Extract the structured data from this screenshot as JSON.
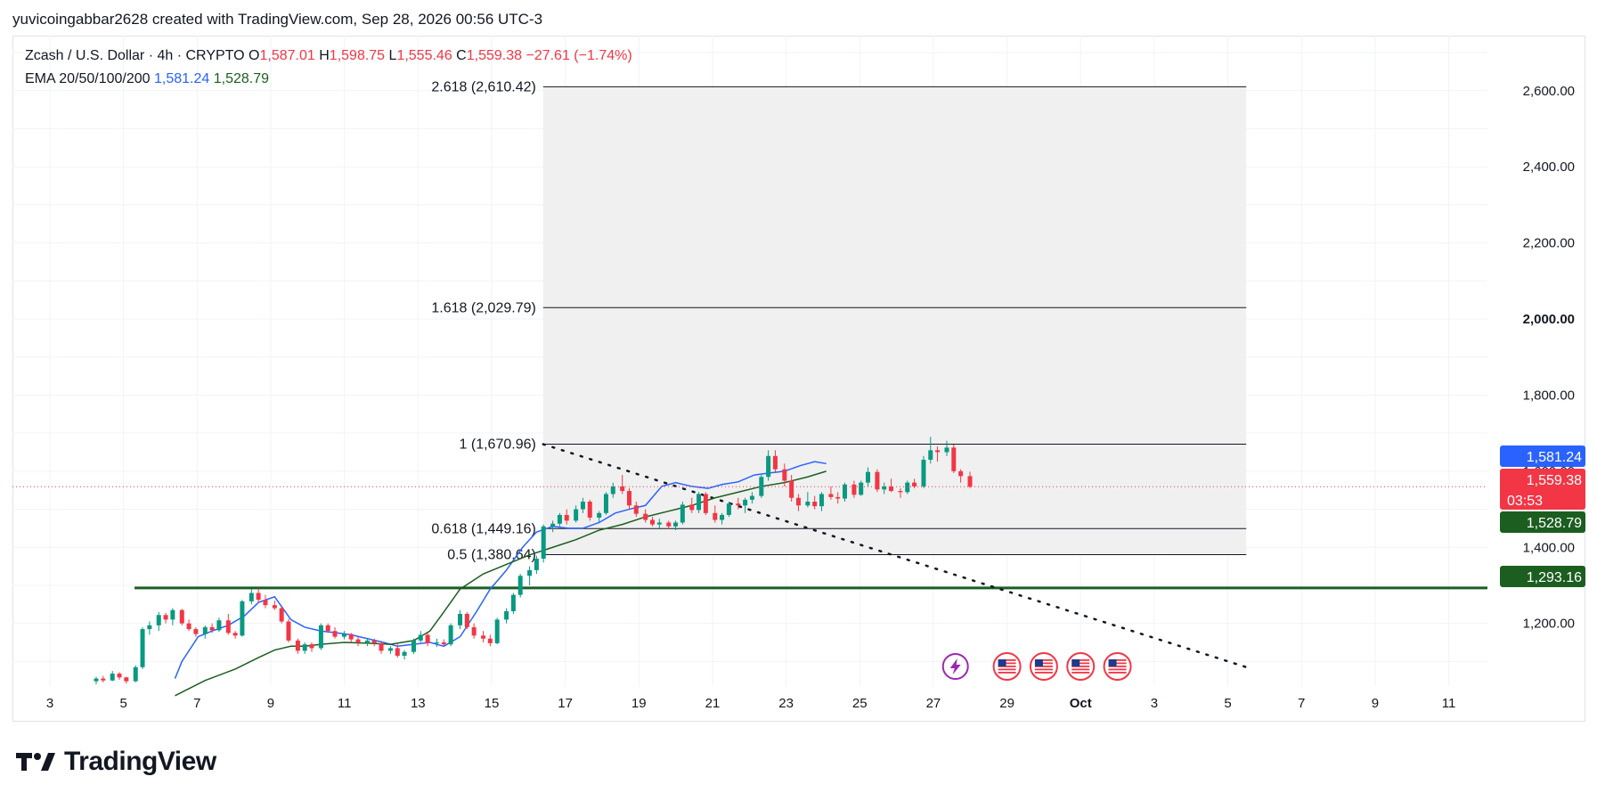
{
  "header": {
    "text": "yuvicoingabbar2628 created with TradingView.com, Sep 28, 2026 00:56 UTC-3"
  },
  "legend": {
    "symbol": "Zcash / U.S. Dollar · 4h · CRYPTO",
    "o_label": "O",
    "o_value": "1,587.01",
    "h_label": "H",
    "h_value": "1,598.75",
    "l_label": "L",
    "l_value": "1,555.46",
    "c_label": "C",
    "c_value": "1,559.38",
    "change": "−27.61 (−1.74%)",
    "ema_label": "EMA 20/50/100/200",
    "ema1": "1,581.24",
    "ema2": "1,528.79"
  },
  "logo": {
    "text": "TradingView"
  },
  "colors": {
    "up": "#089981",
    "down": "#f23645",
    "ema_fast": "#2962ff",
    "ema_slow": "#1b5e20",
    "support": "#1b5e20",
    "fib_zone": "#f0f0f0"
  },
  "chart_data": {
    "type": "candlestick",
    "x_ticks": [
      {
        "label": "3",
        "day": 3
      },
      {
        "label": "5",
        "day": 5
      },
      {
        "label": "7",
        "day": 7
      },
      {
        "label": "9",
        "day": 9
      },
      {
        "label": "11",
        "day": 11
      },
      {
        "label": "13",
        "day": 13
      },
      {
        "label": "15",
        "day": 15
      },
      {
        "label": "17",
        "day": 17
      },
      {
        "label": "19",
        "day": 19
      },
      {
        "label": "21",
        "day": 21
      },
      {
        "label": "23",
        "day": 23
      },
      {
        "label": "25",
        "day": 25
      },
      {
        "label": "27",
        "day": 27
      },
      {
        "label": "29",
        "day": 29
      },
      {
        "label": "Oct",
        "day": 31
      },
      {
        "label": "3",
        "day": 33
      },
      {
        "label": "5",
        "day": 35
      },
      {
        "label": "7",
        "day": 37
      },
      {
        "label": "9",
        "day": 39
      },
      {
        "label": "11",
        "day": 41
      }
    ],
    "y_ticks": [
      "1,200.00",
      "1,400.00",
      "1,600.00",
      "1,800.00",
      "2,000.00",
      "2,200.00",
      "2,400.00",
      "2,600.00"
    ],
    "y_range": [
      1040,
      2740
    ],
    "price_tags": [
      {
        "label": "1,581.24",
        "value": 1581.24,
        "color": "#2962ff"
      },
      {
        "label": "1,559.38",
        "value": 1559.38,
        "color": "#f23645",
        "sub": "03:53"
      },
      {
        "label": "1,528.79",
        "value": 1528.79,
        "color": "#1b5e20"
      },
      {
        "label": "1,293.16",
        "value": 1293.16,
        "color": "#1b5e20"
      }
    ],
    "fib_levels": [
      {
        "label": "2.618 (2,610.42)",
        "value": 2610.42
      },
      {
        "label": "1.618 (2,029.79)",
        "value": 2029.79
      },
      {
        "label": "1 (1,670.96)",
        "value": 1670.96
      },
      {
        "label": "0.618 (1,449.16)",
        "value": 1449.16
      },
      {
        "label": "0.5 (1,380.64)",
        "value": 1380.64
      }
    ],
    "fib_zone": {
      "day_start": 16.4,
      "day_end": 35.5
    },
    "support_line": {
      "value": 1293.16,
      "day_start": 5.3
    },
    "trend_line": {
      "day_start": 16.4,
      "value_start": 1670.96,
      "day_end": 35.5,
      "value_end": 1085
    },
    "ema_fast": [
      [
        7.7,
        1055
      ],
      [
        8,
        1100
      ],
      [
        8.7,
        1165
      ],
      [
        9.3,
        1180
      ],
      [
        10,
        1195
      ],
      [
        10.7,
        1220
      ],
      [
        11.3,
        1255
      ],
      [
        12,
        1270
      ],
      [
        12.7,
        1210
      ],
      [
        13.3,
        1190
      ],
      [
        14,
        1180
      ],
      [
        14.7,
        1175
      ],
      [
        15.3,
        1170
      ],
      [
        16,
        1160
      ],
      [
        16.7,
        1150
      ],
      [
        17.3,
        1140
      ],
      [
        18,
        1145
      ],
      [
        18.7,
        1150
      ],
      [
        19.3,
        1140
      ],
      [
        20,
        1165
      ],
      [
        20.7,
        1230
      ],
      [
        21.3,
        1290
      ],
      [
        22,
        1340
      ],
      [
        22.7,
        1400
      ],
      [
        23.3,
        1440
      ],
      [
        24,
        1455
      ],
      [
        24.7,
        1450
      ],
      [
        25.3,
        1450
      ],
      [
        26,
        1465
      ],
      [
        26.7,
        1490
      ],
      [
        27.3,
        1500
      ],
      [
        28,
        1510
      ],
      [
        28.7,
        1560
      ],
      [
        29.3,
        1570
      ],
      [
        30,
        1560
      ],
      [
        30.7,
        1555
      ],
      [
        31.3,
        1565
      ],
      [
        32,
        1572
      ],
      [
        32.7,
        1590
      ],
      [
        33.3,
        1595
      ],
      [
        34,
        1600
      ],
      [
        34.7,
        1615
      ],
      [
        35.3,
        1625
      ],
      [
        35.8,
        1620
      ]
    ],
    "ema_slow": [
      [
        7.7,
        1010
      ],
      [
        9,
        1050
      ],
      [
        10.3,
        1080
      ],
      [
        11.3,
        1110
      ],
      [
        12,
        1130
      ],
      [
        12.7,
        1140
      ],
      [
        13.3,
        1140
      ],
      [
        14,
        1145
      ],
      [
        15,
        1150
      ],
      [
        16,
        1148
      ],
      [
        17,
        1145
      ],
      [
        18,
        1155
      ],
      [
        18.7,
        1180
      ],
      [
        19.3,
        1230
      ],
      [
        20,
        1290
      ],
      [
        21,
        1330
      ],
      [
        22,
        1355
      ],
      [
        23,
        1380
      ],
      [
        24,
        1400
      ],
      [
        25,
        1420
      ],
      [
        26,
        1445
      ],
      [
        27,
        1460
      ],
      [
        28,
        1480
      ],
      [
        29,
        1495
      ],
      [
        30,
        1510
      ],
      [
        31,
        1530
      ],
      [
        32,
        1545
      ],
      [
        33,
        1560
      ],
      [
        34,
        1570
      ],
      [
        35,
        1585
      ],
      [
        35.8,
        1600
      ]
    ],
    "candles_note": "4h OHLC bars Sep 4 to Sep 27, 2026",
    "candles": [
      [
        4.3,
        1048,
        1060,
        1040,
        1055
      ],
      [
        4.6,
        1055,
        1062,
        1045,
        1050
      ],
      [
        5,
        1050,
        1075,
        1048,
        1068
      ],
      [
        5.3,
        1068,
        1072,
        1052,
        1058
      ],
      [
        5.6,
        1058,
        1060,
        1042,
        1048
      ],
      [
        6,
        1048,
        1090,
        1045,
        1085
      ],
      [
        6.3,
        1085,
        1190,
        1080,
        1185
      ],
      [
        6.6,
        1185,
        1205,
        1170,
        1195
      ],
      [
        7,
        1195,
        1230,
        1180,
        1222
      ],
      [
        7.3,
        1222,
        1228,
        1200,
        1210
      ],
      [
        7.6,
        1210,
        1240,
        1195,
        1235
      ],
      [
        8,
        1235,
        1238,
        1195,
        1200
      ],
      [
        8.3,
        1200,
        1210,
        1180,
        1185
      ],
      [
        8.6,
        1185,
        1190,
        1165,
        1172
      ],
      [
        9,
        1172,
        1195,
        1160,
        1190
      ],
      [
        9.3,
        1190,
        1200,
        1175,
        1182
      ],
      [
        9.6,
        1182,
        1215,
        1178,
        1208
      ],
      [
        10,
        1208,
        1225,
        1170,
        1175
      ],
      [
        10.3,
        1175,
        1180,
        1160,
        1168
      ],
      [
        10.6,
        1168,
        1262,
        1165,
        1258
      ],
      [
        11,
        1258,
        1290,
        1250,
        1280
      ],
      [
        11.3,
        1280,
        1292,
        1255,
        1262
      ],
      [
        11.6,
        1262,
        1275,
        1240,
        1248
      ],
      [
        12,
        1248,
        1260,
        1235,
        1240
      ],
      [
        12.3,
        1240,
        1245,
        1200,
        1205
      ],
      [
        12.6,
        1205,
        1212,
        1150,
        1155
      ],
      [
        13,
        1155,
        1160,
        1120,
        1128
      ],
      [
        13.3,
        1128,
        1150,
        1120,
        1145
      ],
      [
        13.6,
        1145,
        1150,
        1125,
        1135
      ],
      [
        14,
        1135,
        1200,
        1130,
        1195
      ],
      [
        14.3,
        1195,
        1200,
        1175,
        1180
      ],
      [
        14.6,
        1180,
        1190,
        1160,
        1165
      ],
      [
        15,
        1165,
        1180,
        1158,
        1172
      ],
      [
        15.3,
        1172,
        1175,
        1150,
        1158
      ],
      [
        15.6,
        1158,
        1165,
        1140,
        1150
      ],
      [
        16,
        1150,
        1160,
        1140,
        1155
      ],
      [
        16.3,
        1155,
        1160,
        1140,
        1148
      ],
      [
        16.6,
        1148,
        1150,
        1120,
        1128
      ],
      [
        17,
        1128,
        1140,
        1120,
        1135
      ],
      [
        17.3,
        1135,
        1145,
        1110,
        1115
      ],
      [
        17.6,
        1115,
        1130,
        1105,
        1125
      ],
      [
        18,
        1125,
        1160,
        1120,
        1155
      ],
      [
        18.3,
        1155,
        1180,
        1150,
        1170
      ],
      [
        18.6,
        1170,
        1175,
        1140,
        1148
      ],
      [
        19,
        1148,
        1160,
        1138,
        1150
      ],
      [
        19.3,
        1150,
        1158,
        1140,
        1145
      ],
      [
        19.6,
        1145,
        1200,
        1140,
        1195
      ],
      [
        20,
        1195,
        1235,
        1185,
        1225
      ],
      [
        20.3,
        1225,
        1230,
        1185,
        1190
      ],
      [
        20.6,
        1190,
        1200,
        1160,
        1168
      ],
      [
        21,
        1168,
        1180,
        1150,
        1160
      ],
      [
        21.3,
        1160,
        1170,
        1140,
        1148
      ],
      [
        21.6,
        1148,
        1215,
        1145,
        1210
      ],
      [
        22,
        1210,
        1240,
        1200,
        1232
      ],
      [
        22.3,
        1232,
        1280,
        1225,
        1275
      ],
      [
        22.6,
        1275,
        1330,
        1268,
        1325
      ],
      [
        23,
        1325,
        1350,
        1300,
        1340
      ],
      [
        23.3,
        1340,
        1378,
        1330,
        1370
      ],
      [
        23.6,
        1370,
        1460,
        1360,
        1455
      ],
      [
        24,
        1455,
        1470,
        1440,
        1462
      ],
      [
        24.3,
        1462,
        1490,
        1455,
        1485
      ],
      [
        24.6,
        1485,
        1500,
        1460,
        1470
      ],
      [
        25,
        1470,
        1510,
        1465,
        1500
      ],
      [
        25.3,
        1500,
        1530,
        1490,
        1520
      ],
      [
        25.6,
        1520,
        1525,
        1470,
        1478
      ],
      [
        26,
        1478,
        1495,
        1465,
        1490
      ],
      [
        26.3,
        1490,
        1545,
        1485,
        1540
      ],
      [
        26.6,
        1540,
        1570,
        1530,
        1560
      ],
      [
        27,
        1560,
        1590,
        1540,
        1548
      ],
      [
        27.3,
        1548,
        1555,
        1500,
        1510
      ],
      [
        27.6,
        1510,
        1520,
        1480,
        1488
      ],
      [
        28,
        1488,
        1500,
        1465,
        1472
      ],
      [
        28.3,
        1472,
        1480,
        1455,
        1460
      ],
      [
        28.6,
        1460,
        1475,
        1450,
        1465
      ],
      [
        29,
        1465,
        1470,
        1448,
        1455
      ],
      [
        29.3,
        1455,
        1470,
        1445,
        1465
      ],
      [
        29.6,
        1465,
        1520,
        1460,
        1512
      ],
      [
        30,
        1512,
        1530,
        1490,
        1498
      ],
      [
        30.3,
        1498,
        1545,
        1490,
        1540
      ],
      [
        30.6,
        1540,
        1545,
        1485,
        1490
      ],
      [
        31,
        1490,
        1510,
        1465,
        1472
      ],
      [
        31.3,
        1472,
        1490,
        1460,
        1485
      ],
      [
        31.6,
        1485,
        1520,
        1480,
        1515
      ],
      [
        32,
        1515,
        1530,
        1500,
        1510
      ],
      [
        32.3,
        1510,
        1530,
        1490,
        1525
      ],
      [
        32.6,
        1525,
        1545,
        1515,
        1535
      ],
      [
        33,
        1535,
        1590,
        1530,
        1585
      ],
      [
        33.3,
        1585,
        1655,
        1575,
        1640
      ],
      [
        33.6,
        1640,
        1655,
        1595,
        1605
      ],
      [
        34,
        1605,
        1620,
        1560,
        1575
      ],
      [
        34.3,
        1575,
        1590,
        1520,
        1530
      ],
      [
        34.6,
        1530,
        1540,
        1495,
        1510
      ],
      [
        35,
        1510,
        1545,
        1505,
        1520
      ],
      [
        35.3,
        1520,
        1535,
        1500,
        1508
      ],
      [
        35.6,
        1508,
        1545,
        1495,
        1540
      ],
      [
        36,
        1540,
        1560,
        1525,
        1532
      ],
      [
        36.3,
        1532,
        1545,
        1515,
        1528
      ],
      [
        36.6,
        1528,
        1570,
        1520,
        1565
      ],
      [
        37,
        1565,
        1575,
        1530,
        1538
      ],
      [
        37.3,
        1538,
        1575,
        1535,
        1570
      ],
      [
        37.6,
        1570,
        1610,
        1560,
        1598
      ],
      [
        38,
        1598,
        1605,
        1545,
        1552
      ],
      [
        38.3,
        1552,
        1570,
        1540,
        1560
      ],
      [
        38.6,
        1560,
        1580,
        1545,
        1548
      ],
      [
        39,
        1548,
        1555,
        1530,
        1545
      ],
      [
        39.3,
        1545,
        1575,
        1540,
        1570
      ],
      [
        39.6,
        1570,
        1580,
        1555,
        1560
      ],
      [
        40,
        1560,
        1640,
        1555,
        1630
      ],
      [
        40.3,
        1630,
        1690,
        1620,
        1655
      ],
      [
        40.6,
        1655,
        1665,
        1625,
        1650
      ],
      [
        41,
        1650,
        1680,
        1640,
        1662
      ],
      [
        41.3,
        1662,
        1670,
        1595,
        1600
      ],
      [
        41.6,
        1600,
        1605,
        1570,
        1587
      ],
      [
        42,
        1587,
        1598.75,
        1555.46,
        1559.38
      ]
    ],
    "event_icons": [
      {
        "name": "lightning-event",
        "day": 27.6
      },
      {
        "name": "us-flag-event",
        "day": 29
      },
      {
        "name": "us-flag-event",
        "day": 30
      },
      {
        "name": "us-flag-event",
        "day": 31
      },
      {
        "name": "us-flag-event",
        "day": 32
      }
    ]
  }
}
